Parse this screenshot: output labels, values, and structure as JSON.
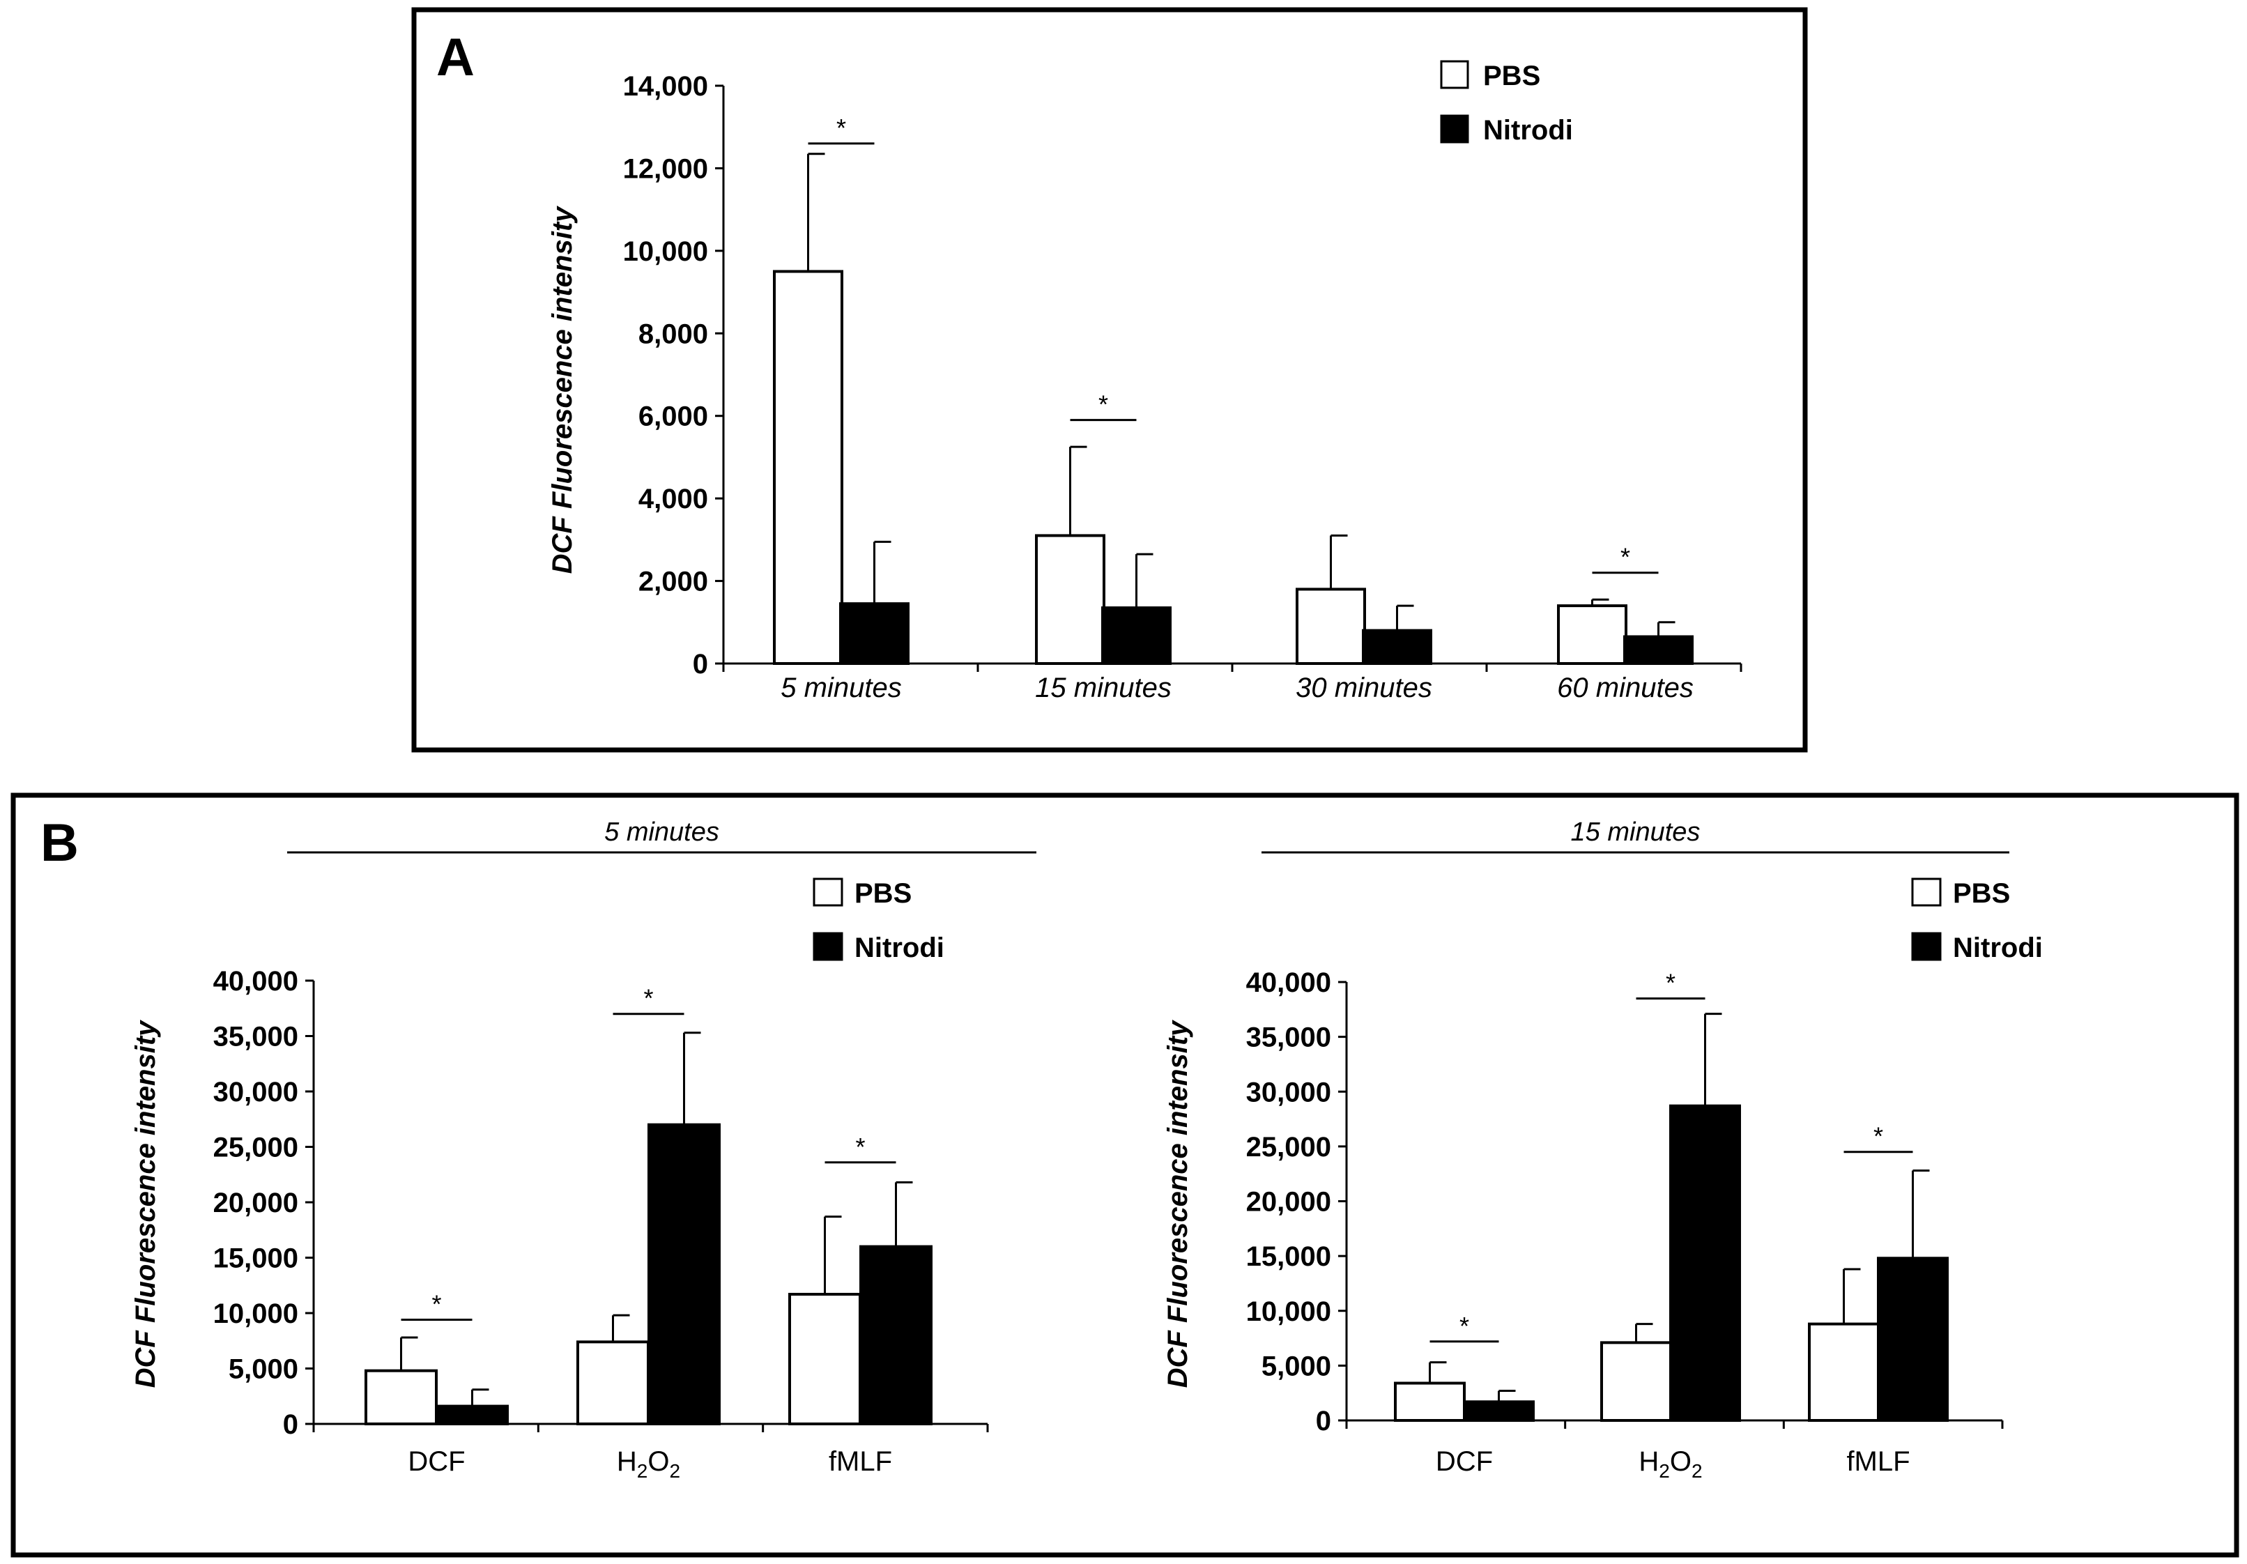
{
  "figure": {
    "panel_a_letter": "A",
    "panel_b_letter": "B"
  },
  "chart_data": [
    {
      "id": "A",
      "type": "bar",
      "title": "",
      "xlabel": "",
      "ylabel": "DCF Fluorescence intensity",
      "ylim": [
        0,
        14000
      ],
      "yticks": [
        "0",
        "2,000",
        "4,000",
        "6,000",
        "8,000",
        "10,000",
        "12,000",
        "14,000"
      ],
      "ytick_values": [
        0,
        2000,
        4000,
        6000,
        8000,
        10000,
        12000,
        14000
      ],
      "categories": [
        "5 minutes",
        "15 minutes",
        "30 minutes",
        "60 minutes"
      ],
      "category_rich": [
        false,
        false,
        false,
        false
      ],
      "series": [
        {
          "name": "PBS",
          "color": "#ffffff",
          "values": [
            9500,
            3100,
            1800,
            1400
          ],
          "errors": [
            2850,
            2150,
            1300,
            150
          ]
        },
        {
          "name": "Nitrodi",
          "color": "#000000",
          "values": [
            1450,
            1350,
            800,
            650
          ],
          "errors": [
            1500,
            1300,
            600,
            350
          ]
        }
      ],
      "significance": [
        {
          "category": 0,
          "label": "*",
          "level": 12600
        },
        {
          "category": 1,
          "label": "*",
          "level": 5900
        },
        {
          "category": 3,
          "label": "*",
          "level": 2200
        }
      ],
      "legend": "top-right"
    },
    {
      "id": "B-5",
      "type": "bar",
      "title": "5 minutes",
      "xlabel": "",
      "ylabel": "DCF Fluorescence intensity",
      "ylim": [
        0,
        40000
      ],
      "yticks": [
        "0",
        "5,000",
        "10,000",
        "15,000",
        "20,000",
        "25,000",
        "30,000",
        "35,000",
        "40,000"
      ],
      "ytick_values": [
        0,
        5000,
        10000,
        15000,
        20000,
        25000,
        30000,
        35000,
        40000
      ],
      "categories": [
        "DCF",
        "H2O2",
        "fMLF"
      ],
      "category_rich": [
        false,
        true,
        false
      ],
      "series": [
        {
          "name": "PBS",
          "color": "#ffffff",
          "values": [
            4800,
            7400,
            11700
          ],
          "errors": [
            3000,
            2400,
            7000
          ]
        },
        {
          "name": "Nitrodi",
          "color": "#000000",
          "values": [
            1600,
            27000,
            16000
          ],
          "errors": [
            1500,
            8300,
            5800
          ]
        }
      ],
      "significance": [
        {
          "category": 0,
          "label": "*",
          "level": 9400
        },
        {
          "category": 1,
          "label": "*",
          "level": 37000
        },
        {
          "category": 2,
          "label": "*",
          "level": 23600
        }
      ],
      "legend": "top-right"
    },
    {
      "id": "B-15",
      "type": "bar",
      "title": "15 minutes",
      "xlabel": "",
      "ylabel": "DCF Fluorescence intensity",
      "ylim": [
        0,
        40000
      ],
      "yticks": [
        "0",
        "5,000",
        "10,000",
        "15,000",
        "20,000",
        "25,000",
        "30,000",
        "35,000",
        "40,000"
      ],
      "ytick_values": [
        0,
        5000,
        10000,
        15000,
        20000,
        25000,
        30000,
        35000,
        40000
      ],
      "categories": [
        "DCF",
        "H2O2",
        "fMLF"
      ],
      "category_rich": [
        false,
        true,
        false
      ],
      "series": [
        {
          "name": "PBS",
          "color": "#ffffff",
          "values": [
            3400,
            7100,
            8800
          ],
          "errors": [
            1900,
            1700,
            5000
          ]
        },
        {
          "name": "Nitrodi",
          "color": "#000000",
          "values": [
            1700,
            28700,
            14800
          ],
          "errors": [
            1000,
            8400,
            8000
          ]
        }
      ],
      "significance": [
        {
          "category": 0,
          "label": "*",
          "level": 7200
        },
        {
          "category": 1,
          "label": "*",
          "level": 38500
        },
        {
          "category": 2,
          "label": "*",
          "level": 24500
        }
      ],
      "legend": "top-right"
    }
  ]
}
